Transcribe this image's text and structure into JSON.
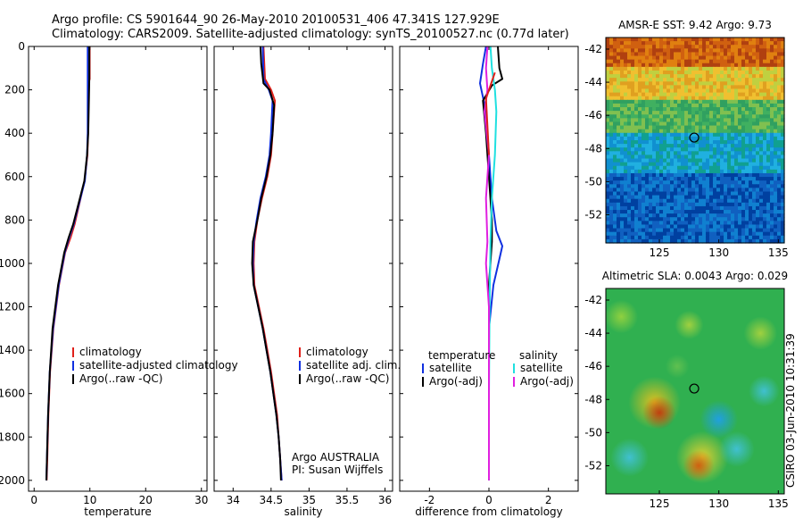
{
  "header": {
    "line1": "Argo profile: CS 5901644_90 26-May-2010 20100531_406 47.341S 127.929E",
    "line2": "Climatology: CARS2009. Satellite-adjusted climatology: synTS_20100527.nc (0.77d later)"
  },
  "side_label": "CSIRO 03-Jun-2010 10:31:39",
  "colors": {
    "clim": "#e0201a",
    "sat": "#1030e0",
    "argo": "#000000",
    "sat_sal": "#20e0e0",
    "argo_sal": "#e020e0"
  },
  "chart_data": [
    {
      "id": "temp",
      "type": "line",
      "xlabel": "temperature",
      "xlim": [
        -1,
        31
      ],
      "ylim": [
        2050,
        0
      ],
      "xticks": [
        0,
        10,
        20,
        30
      ],
      "yticks": [
        0,
        200,
        400,
        600,
        800,
        1000,
        1200,
        1400,
        1600,
        1800,
        2000
      ],
      "legend": {
        "placement": "lower-right",
        "entries": [
          "climatology",
          "satellite-adjusted climatology",
          "Argo(..raw -QC)"
        ]
      },
      "series": [
        {
          "name": "climatology",
          "color": "clim",
          "points": [
            [
              10.0,
              0
            ],
            [
              10.0,
              150
            ],
            [
              9.8,
              170
            ],
            [
              9.7,
              400
            ],
            [
              9.6,
              500
            ],
            [
              9.1,
              620
            ],
            [
              8.2,
              720
            ],
            [
              7.3,
              820
            ],
            [
              6.6,
              880
            ],
            [
              5.6,
              950
            ],
            [
              4.5,
              1100
            ],
            [
              3.5,
              1300
            ],
            [
              2.9,
              1500
            ],
            [
              2.6,
              1700
            ],
            [
              2.4,
              1900
            ],
            [
              2.3,
              2000
            ]
          ]
        },
        {
          "name": "satellite-adjusted climatology",
          "color": "sat",
          "points": [
            [
              9.6,
              0
            ],
            [
              9.6,
              150
            ],
            [
              9.6,
              400
            ],
            [
              9.5,
              500
            ],
            [
              9.1,
              620
            ],
            [
              8.1,
              720
            ],
            [
              7.1,
              820
            ],
            [
              6.3,
              880
            ],
            [
              5.5,
              950
            ],
            [
              4.4,
              1100
            ],
            [
              3.4,
              1300
            ],
            [
              2.8,
              1500
            ],
            [
              2.5,
              1700
            ],
            [
              2.3,
              1900
            ],
            [
              2.2,
              2000
            ]
          ]
        },
        {
          "name": "Argo(..raw -QC)",
          "color": "argo",
          "points": [
            [
              9.9,
              0
            ],
            [
              9.9,
              150
            ],
            [
              9.7,
              400
            ],
            [
              9.5,
              500
            ],
            [
              9.0,
              620
            ],
            [
              8.0,
              720
            ],
            [
              7.0,
              820
            ],
            [
              6.2,
              880
            ],
            [
              5.4,
              950
            ],
            [
              4.3,
              1100
            ],
            [
              3.3,
              1300
            ],
            [
              2.8,
              1500
            ],
            [
              2.5,
              1700
            ],
            [
              2.3,
              1900
            ],
            [
              2.2,
              2000
            ]
          ]
        }
      ]
    },
    {
      "id": "sal",
      "type": "line",
      "xlabel": "salinity",
      "xlim": [
        33.75,
        36.1
      ],
      "ylim": [
        2050,
        0
      ],
      "xticks": [
        34,
        34.5,
        35,
        35.5,
        36
      ],
      "yticks": [
        0,
        200,
        400,
        600,
        800,
        1000,
        1200,
        1400,
        1600,
        1800,
        2000
      ],
      "legend": {
        "placement": "lower-right",
        "entries": [
          "climatology",
          "satellite adj. clim.",
          "Argo(..raw -QC)"
        ]
      },
      "annotation": [
        "Argo AUSTRALIA",
        "PI: Susan Wijffels"
      ],
      "series": [
        {
          "name": "climatology",
          "color": "clim",
          "points": [
            [
              34.4,
              0
            ],
            [
              34.42,
              150
            ],
            [
              34.5,
              200
            ],
            [
              34.55,
              250
            ],
            [
              34.52,
              400
            ],
            [
              34.5,
              500
            ],
            [
              34.45,
              600
            ],
            [
              34.38,
              700
            ],
            [
              34.32,
              800
            ],
            [
              34.28,
              900
            ],
            [
              34.27,
              1000
            ],
            [
              34.28,
              1100
            ],
            [
              34.34,
              1200
            ],
            [
              34.4,
              1300
            ],
            [
              34.45,
              1400
            ],
            [
              34.5,
              1500
            ],
            [
              34.54,
              1600
            ],
            [
              34.58,
              1700
            ],
            [
              34.6,
              1800
            ],
            [
              34.62,
              1900
            ],
            [
              34.64,
              2000
            ]
          ]
        },
        {
          "name": "satellite adj. clim.",
          "color": "sat",
          "points": [
            [
              34.39,
              0
            ],
            [
              34.4,
              150
            ],
            [
              34.47,
              200
            ],
            [
              34.52,
              250
            ],
            [
              34.5,
              400
            ],
            [
              34.48,
              500
            ],
            [
              34.43,
              600
            ],
            [
              34.36,
              700
            ],
            [
              34.31,
              800
            ],
            [
              34.27,
              900
            ],
            [
              34.26,
              1000
            ],
            [
              34.27,
              1100
            ],
            [
              34.33,
              1200
            ],
            [
              34.39,
              1300
            ],
            [
              34.44,
              1400
            ],
            [
              34.49,
              1500
            ],
            [
              34.53,
              1600
            ],
            [
              34.57,
              1700
            ],
            [
              34.6,
              1800
            ],
            [
              34.62,
              1900
            ],
            [
              34.64,
              2000
            ]
          ]
        },
        {
          "name": "Argo(..raw -QC)",
          "color": "argo",
          "points": [
            [
              34.36,
              0
            ],
            [
              34.37,
              80
            ],
            [
              34.4,
              170
            ],
            [
              34.48,
              200
            ],
            [
              34.54,
              270
            ],
            [
              34.52,
              400
            ],
            [
              34.49,
              500
            ],
            [
              34.44,
              600
            ],
            [
              34.37,
              700
            ],
            [
              34.32,
              800
            ],
            [
              34.26,
              900
            ],
            [
              34.25,
              1000
            ],
            [
              34.27,
              1100
            ],
            [
              34.33,
              1200
            ],
            [
              34.39,
              1300
            ],
            [
              34.44,
              1400
            ],
            [
              34.49,
              1500
            ],
            [
              34.53,
              1600
            ],
            [
              34.57,
              1700
            ],
            [
              34.6,
              1800
            ],
            [
              34.62,
              1900
            ],
            [
              34.63,
              2000
            ]
          ]
        }
      ]
    },
    {
      "id": "diff",
      "type": "line",
      "xlabel": "difference from climatology",
      "xlim": [
        -3,
        3
      ],
      "ylim": [
        2050,
        0
      ],
      "xticks": [
        -2,
        0,
        2
      ],
      "yticks": [
        0,
        200,
        400,
        600,
        800,
        1000,
        1200,
        1400,
        1600,
        1800,
        2000
      ],
      "legend": {
        "placement": "lower",
        "headers": [
          "temperature",
          "salinity"
        ],
        "entries": [
          "satellite",
          "Argo(-adj)",
          "satellite",
          "Argo(-adj)"
        ]
      },
      "series": [
        {
          "name": "temperature satellite",
          "color": "sat",
          "points": [
            [
              -0.1,
              0
            ],
            [
              -0.2,
              80
            ],
            [
              -0.3,
              170
            ],
            [
              -0.1,
              300
            ],
            [
              0.0,
              500
            ],
            [
              0.1,
              700
            ],
            [
              0.25,
              850
            ],
            [
              0.45,
              920
            ],
            [
              0.35,
              980
            ],
            [
              0.15,
              1100
            ],
            [
              0.0,
              1300
            ],
            [
              0.0,
              1600
            ],
            [
              0.0,
              2000
            ]
          ]
        },
        {
          "name": "temperature Argo(-adj)",
          "color": "argo",
          "points": [
            [
              0.3,
              0
            ],
            [
              0.35,
              100
            ],
            [
              0.45,
              150
            ],
            [
              0.1,
              180
            ],
            [
              -0.2,
              250
            ],
            [
              -0.1,
              400
            ],
            [
              0.0,
              600
            ],
            [
              0.1,
              800
            ],
            [
              0.1,
              900
            ],
            [
              0.0,
              1100
            ],
            [
              0.0,
              1500
            ],
            [
              0.0,
              2000
            ]
          ]
        },
        {
          "name": "salinity satellite",
          "color": "sat_sal",
          "points": [
            [
              0.05,
              0
            ],
            [
              0.1,
              100
            ],
            [
              0.2,
              200
            ],
            [
              0.25,
              300
            ],
            [
              0.2,
              500
            ],
            [
              0.1,
              700
            ],
            [
              0.05,
              900
            ],
            [
              0.02,
              1200
            ],
            [
              0.0,
              1600
            ],
            [
              0.0,
              2000
            ]
          ]
        },
        {
          "name": "salinity Argo(-adj)",
          "color": "argo_sal",
          "points": [
            [
              -0.05,
              0
            ],
            [
              -0.1,
              100
            ],
            [
              -0.05,
              200
            ],
            [
              -0.15,
              300
            ],
            [
              0.0,
              500
            ],
            [
              -0.1,
              700
            ],
            [
              -0.05,
              900
            ],
            [
              -0.1,
              1000
            ],
            [
              0.0,
              1200
            ],
            [
              0.0,
              2000
            ]
          ]
        },
        {
          "name": "climatology difference",
          "color": "clim",
          "points": [
            [
              0.2,
              120
            ],
            [
              -0.1,
              240
            ],
            [
              0.0,
              500
            ]
          ]
        }
      ]
    },
    {
      "id": "sst",
      "type": "heatmap",
      "title": "AMSR-E SST: 9.42 Argo: 9.73",
      "xlim": [
        120.5,
        135.5
      ],
      "ylim": [
        -53.7,
        -41.3
      ],
      "xticks": [
        125,
        130,
        135
      ],
      "yticks": [
        -42,
        -44,
        -46,
        -48,
        -50,
        -52
      ],
      "marker": {
        "lon": 127.929,
        "lat": -47.341
      },
      "bands": [
        {
          "lat_from": -41.3,
          "lat_to": -43.0,
          "colors": [
            "#b04010",
            "#d06010",
            "#e08010"
          ]
        },
        {
          "lat_from": -43.0,
          "lat_to": -45.0,
          "colors": [
            "#e0a020",
            "#f0c030",
            "#c0d040"
          ]
        },
        {
          "lat_from": -45.0,
          "lat_to": -47.0,
          "colors": [
            "#80c050",
            "#40b060",
            "#30a060"
          ]
        },
        {
          "lat_from": -47.0,
          "lat_to": -49.5,
          "colors": [
            "#10a090",
            "#1090d0",
            "#20b0e0"
          ]
        },
        {
          "lat_from": -49.5,
          "lat_to": -53.7,
          "colors": [
            "#1060c0",
            "#0040a0",
            "#1080d0"
          ]
        }
      ]
    },
    {
      "id": "sla",
      "type": "heatmap",
      "title": "Altimetric SLA: 0.0043 Argo: 0.029",
      "xlim": [
        120.5,
        135.5
      ],
      "ylim": [
        -53.7,
        -41.3
      ],
      "xticks": [
        125,
        130,
        135
      ],
      "yticks": [
        -42,
        -44,
        -46,
        -48,
        -50,
        -52
      ],
      "marker": {
        "lon": 127.929,
        "lat": -47.341
      },
      "background": "#30b050",
      "blobs": [
        {
          "lon": 125.0,
          "lat": -48.8,
          "r": 1.4,
          "color": "#c04010"
        },
        {
          "lon": 124.6,
          "lat": -48.2,
          "r": 2.2,
          "color": "#e0c020"
        },
        {
          "lon": 128.3,
          "lat": -52.0,
          "r": 1.3,
          "color": "#d06010"
        },
        {
          "lon": 128.6,
          "lat": -51.5,
          "r": 2.2,
          "color": "#e0d030"
        },
        {
          "lon": 130.0,
          "lat": -49.2,
          "r": 1.6,
          "color": "#20a0e0"
        },
        {
          "lon": 131.5,
          "lat": -51.0,
          "r": 1.5,
          "color": "#40c0d0"
        },
        {
          "lon": 122.5,
          "lat": -51.5,
          "r": 1.6,
          "color": "#40c0d0"
        },
        {
          "lon": 133.8,
          "lat": -47.5,
          "r": 1.3,
          "color": "#40c0d0"
        },
        {
          "lon": 121.8,
          "lat": -43.0,
          "r": 1.4,
          "color": "#90d040"
        },
        {
          "lon": 127.5,
          "lat": -43.5,
          "r": 1.2,
          "color": "#a0d040"
        },
        {
          "lon": 133.5,
          "lat": -44.0,
          "r": 1.4,
          "color": "#a0d040"
        },
        {
          "lon": 126.5,
          "lat": -46.0,
          "r": 1.0,
          "color": "#60c050"
        }
      ]
    }
  ]
}
